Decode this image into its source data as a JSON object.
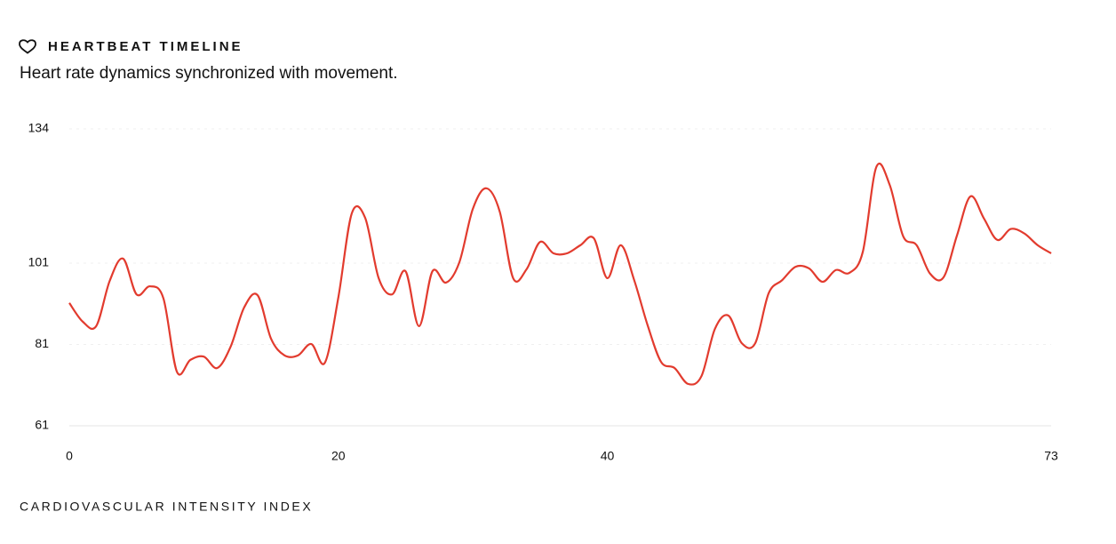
{
  "chart_data": {
    "type": "line",
    "title": "HEARTBEAT TIMELINE",
    "subtitle": "Heart rate dynamics synchronized with movement.",
    "x_label": "CARDIOVASCULAR INTENSITY INDEX",
    "x": [
      0,
      1,
      2,
      3,
      4,
      5,
      6,
      7,
      8,
      9,
      10,
      11,
      12,
      13,
      14,
      15,
      16,
      17,
      18,
      19,
      20,
      21,
      22,
      23,
      24,
      25,
      26,
      27,
      28,
      29,
      30,
      31,
      32,
      33,
      34,
      35,
      36,
      37,
      38,
      39,
      40,
      41,
      42,
      43,
      44,
      45,
      46,
      47,
      48,
      49,
      50,
      51,
      52,
      53,
      54,
      55,
      56,
      57,
      58,
      59,
      60,
      61,
      62,
      63,
      64,
      65,
      66,
      67,
      68,
      69,
      70,
      71,
      72,
      73
    ],
    "series": [
      {
        "name": "Heart rate",
        "color": "#e23b2e",
        "values": [
          91.2,
          86.6,
          85.5,
          96.6,
          102.1,
          93.3,
          95.3,
          92.3,
          74.3,
          77.2,
          78.0,
          75.2,
          80.5,
          90.1,
          93.1,
          82.4,
          78.3,
          78.3,
          81.1,
          76.5,
          92.5,
          113.2,
          112.1,
          97.3,
          93.3,
          99.0,
          85.5,
          99.0,
          96.2,
          101.2,
          114.3,
          119.4,
          113.7,
          97.3,
          99.5,
          106.2,
          103.4,
          103.4,
          105.4,
          107.1,
          97.3,
          105.4,
          96.8,
          85.7,
          76.7,
          75.2,
          71.3,
          73.2,
          84.8,
          88.1,
          81.3,
          81.3,
          93.6,
          96.8,
          100.1,
          99.7,
          96.4,
          99.3,
          98.6,
          103.8,
          124.6,
          120.2,
          107.6,
          105.4,
          98.4,
          97.5,
          107.8,
          117.4,
          112.0,
          106.7,
          109.4,
          108.3,
          105.4,
          103.4
        ]
      }
    ],
    "xlim": [
      0,
      73
    ],
    "xticks": [
      0,
      20,
      40,
      73
    ],
    "ylim": [
      61,
      134
    ],
    "yticks": [
      61,
      81,
      101,
      134
    ],
    "grid": true
  }
}
